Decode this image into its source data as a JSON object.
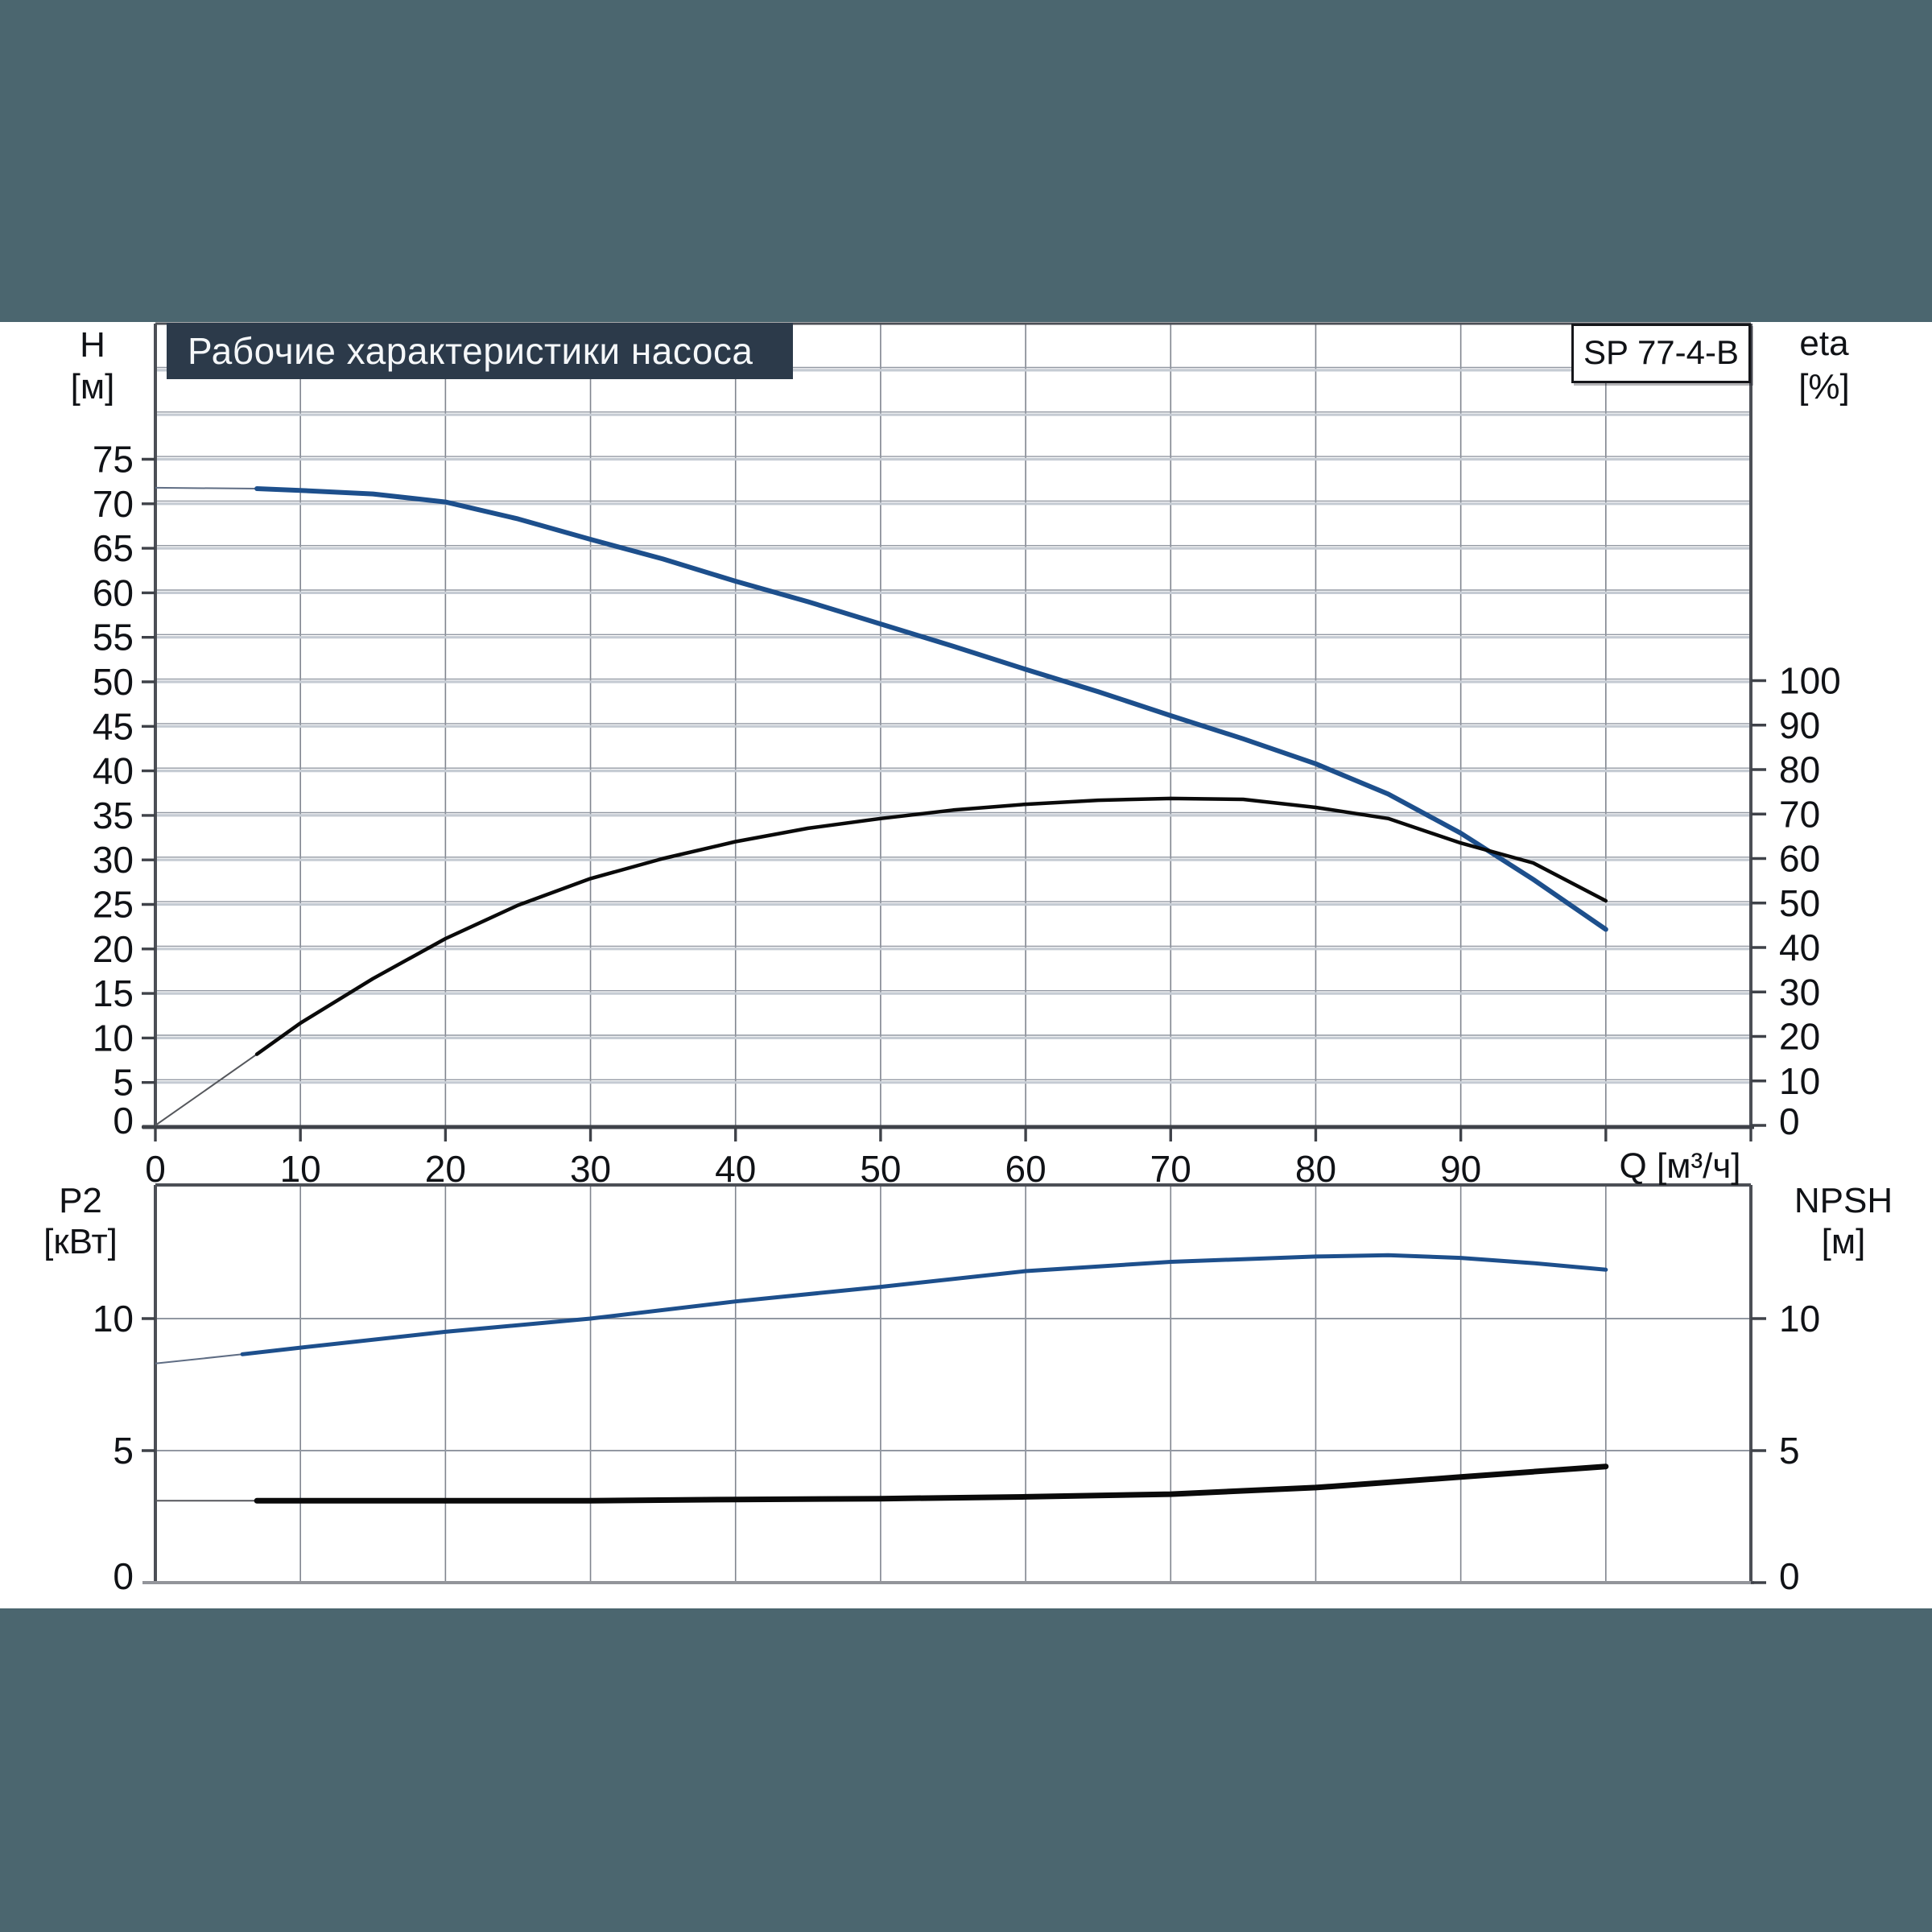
{
  "title_bar": {
    "text": "Рабочие характеристики насоса"
  },
  "model_badge": "SP 77-4-B",
  "labels": {
    "h_top": "H",
    "h_unit": "[м]",
    "eta_top": "eta",
    "eta_unit": "[%]",
    "p2_top": "P2",
    "p2_unit": "[кВт]",
    "npsh_top": "NPSH",
    "npsh_unit": "[м]",
    "q_axis": "Q [м³/ч]"
  },
  "colors": {
    "band": "#4b666f",
    "panel": "#ffffff",
    "title_bg": "#2c3a4a",
    "title_fg": "#f5f7f9",
    "frame": "#4c4f56",
    "baseline_dark": "#3f4249",
    "baseline_light": "#93959a",
    "grid_light": "#c5cbd3",
    "grid_dark": "#9298a2",
    "vgrid": "#80858f",
    "curve_blue": "#1d4f8c",
    "curve_black": "#0a0a0a",
    "thin_blue": "#5f6d84",
    "thin_gray": "#55575c",
    "text": "#101216"
  },
  "chart_data": [
    {
      "type": "line",
      "title": "Рабочие характеристики насоса",
      "badge": "SP 77-4-B",
      "grid": true,
      "x_axis": {
        "label": "Q [м³/ч]",
        "min": 0,
        "max": 110,
        "gridline_step": 10,
        "labeled_ticks": [
          0,
          10,
          20,
          30,
          40,
          50,
          60,
          70,
          80,
          90
        ]
      },
      "y_left": {
        "label": "H [м]",
        "min": 0,
        "max": 90,
        "gridline_step": 5,
        "ticks": [
          0,
          5,
          10,
          15,
          20,
          25,
          30,
          35,
          40,
          45,
          50,
          55,
          60,
          65,
          70,
          75
        ]
      },
      "y_right": {
        "label": "eta [%]",
        "min": 0,
        "max": 100,
        "gridline_step": 10,
        "ticks": [
          0,
          10,
          20,
          30,
          40,
          50,
          60,
          70,
          80,
          90,
          100
        ]
      },
      "series": [
        {
          "name": "head-curve-H-Q",
          "axis": "left",
          "color": "blue",
          "thin_until_q": 7,
          "points": [
            [
              0,
              71.8
            ],
            [
              7,
              71.7
            ],
            [
              10,
              71.5
            ],
            [
              15,
              71.1
            ],
            [
              20,
              70.2
            ],
            [
              25,
              68.3
            ],
            [
              30,
              66.0
            ],
            [
              35,
              63.8
            ],
            [
              40,
              61.3
            ],
            [
              45,
              59.0
            ],
            [
              50,
              56.5
            ],
            [
              55,
              54.0
            ],
            [
              60,
              51.4
            ],
            [
              65,
              48.9
            ],
            [
              70,
              46.2
            ],
            [
              75,
              43.6
            ],
            [
              80,
              40.8
            ],
            [
              85,
              37.4
            ],
            [
              90,
              33.0
            ],
            [
              95,
              27.8
            ],
            [
              100,
              22.2
            ]
          ]
        },
        {
          "name": "efficiency-curve-eta-Q",
          "axis": "right",
          "color": "black",
          "thin_until_q": 7,
          "points": [
            [
              0,
              0
            ],
            [
              7,
              16
            ],
            [
              10,
              23
            ],
            [
              15,
              33
            ],
            [
              20,
              42
            ],
            [
              25,
              49.5
            ],
            [
              30,
              55.5
            ],
            [
              35,
              60.0
            ],
            [
              40,
              63.8
            ],
            [
              45,
              66.8
            ],
            [
              50,
              69.0
            ],
            [
              55,
              70.9
            ],
            [
              60,
              72.2
            ],
            [
              65,
              73.1
            ],
            [
              70,
              73.5
            ],
            [
              75,
              73.3
            ],
            [
              80,
              71.5
            ],
            [
              85,
              69.0
            ],
            [
              90,
              63.5
            ],
            [
              95,
              59.0
            ],
            [
              100,
              50.5
            ]
          ]
        }
      ]
    },
    {
      "type": "line",
      "title": "",
      "grid": true,
      "x_axis": {
        "label": "",
        "min": 0,
        "max": 110,
        "gridline_step": 10,
        "labeled_ticks": []
      },
      "y_left": {
        "label": "P2 [кВт]",
        "min": 0,
        "max": 15,
        "gridline_step": 5,
        "ticks": [
          0,
          5,
          10
        ]
      },
      "y_right": {
        "label": "NPSH [м]",
        "min": 0,
        "max": 15,
        "gridline_step": 5,
        "ticks": [
          0,
          5,
          10
        ]
      },
      "series": [
        {
          "name": "power-curve-P2-Q",
          "axis": "left",
          "color": "blue",
          "thin_until_q": 6,
          "points": [
            [
              0,
              8.3
            ],
            [
              6,
              8.65
            ],
            [
              10,
              8.9
            ],
            [
              20,
              9.5
            ],
            [
              30,
              10.0
            ],
            [
              40,
              10.65
            ],
            [
              50,
              11.2
            ],
            [
              60,
              11.8
            ],
            [
              70,
              12.15
            ],
            [
              80,
              12.35
            ],
            [
              85,
              12.4
            ],
            [
              90,
              12.3
            ],
            [
              95,
              12.1
            ],
            [
              100,
              11.85
            ]
          ]
        },
        {
          "name": "npsh-curve-Q",
          "axis": "right",
          "color": "black",
          "thin_until_q": 7,
          "points": [
            [
              0,
              3.1
            ],
            [
              7,
              3.1
            ],
            [
              10,
              3.1
            ],
            [
              20,
              3.1
            ],
            [
              30,
              3.1
            ],
            [
              40,
              3.15
            ],
            [
              50,
              3.18
            ],
            [
              60,
              3.25
            ],
            [
              70,
              3.35
            ],
            [
              80,
              3.6
            ],
            [
              85,
              3.8
            ],
            [
              90,
              4.0
            ],
            [
              95,
              4.2
            ],
            [
              100,
              4.4
            ]
          ]
        }
      ]
    }
  ]
}
